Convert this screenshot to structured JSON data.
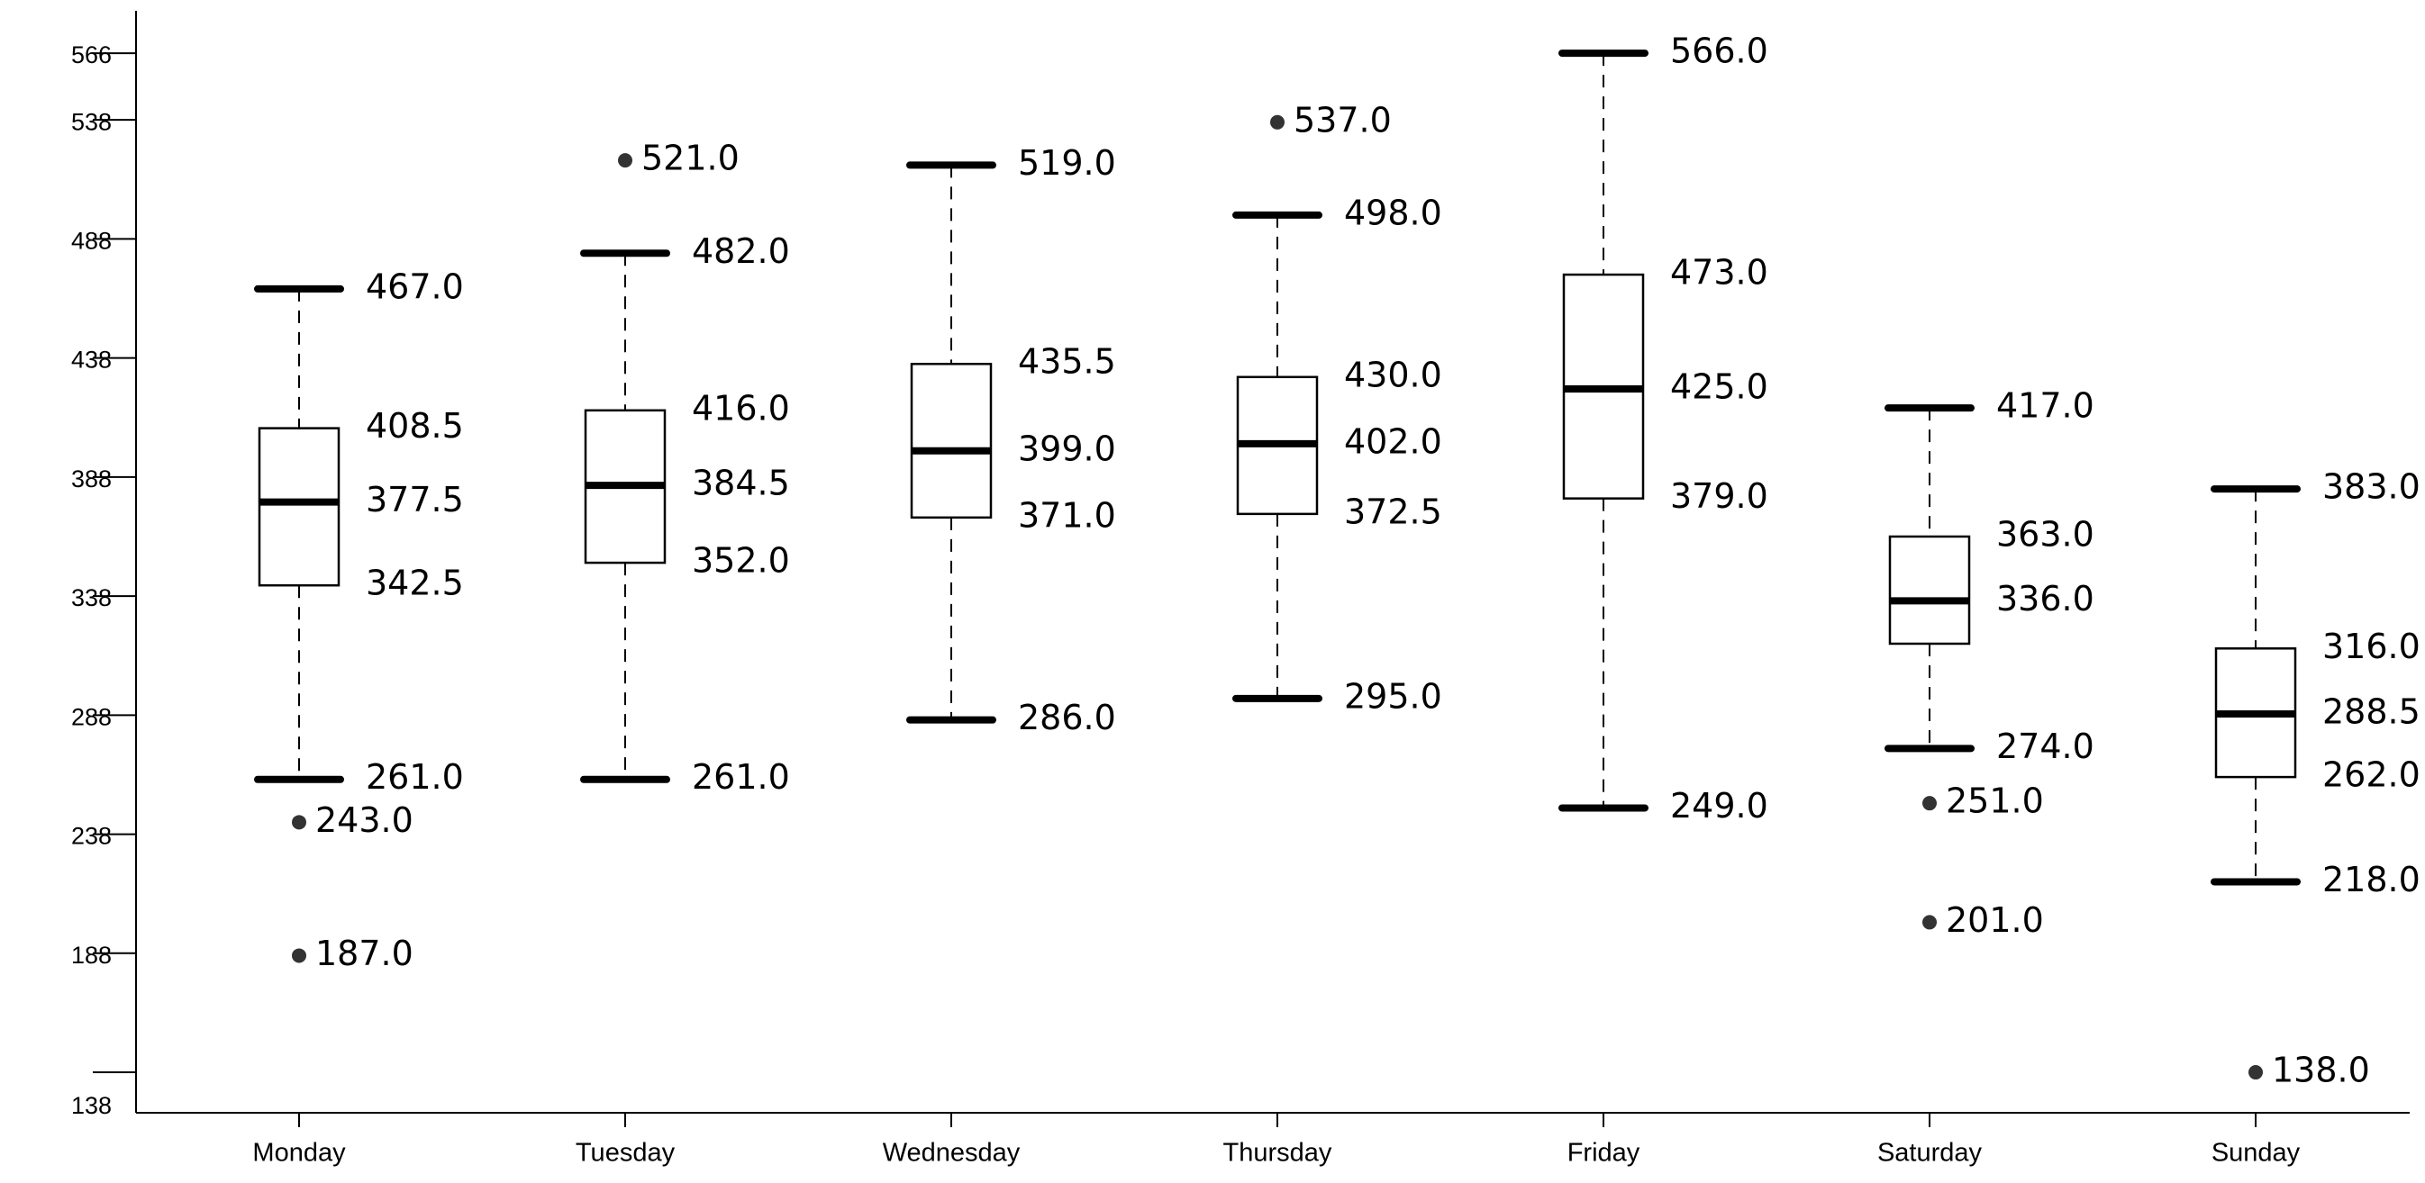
{
  "chart_data": {
    "type": "boxplot",
    "title": "",
    "xlabel": "",
    "ylabel": "",
    "categories": [
      "Monday",
      "Tuesday",
      "Wednesday",
      "Thursday",
      "Friday",
      "Saturday",
      "Sunday"
    ],
    "y_ticks": [
      138,
      188,
      238,
      288,
      338,
      388,
      438,
      488,
      538,
      566
    ],
    "ylim": [
      121,
      577
    ],
    "grid": false,
    "boxes": [
      {
        "category": "Monday",
        "whisker_low": 261.0,
        "q1": 342.5,
        "median": 377.5,
        "q3": 408.5,
        "whisker_high": 467.0,
        "outliers": [
          243.0,
          187.0
        ]
      },
      {
        "category": "Tuesday",
        "whisker_low": 261.0,
        "q1": 352.0,
        "median": 384.5,
        "q3": 416.0,
        "whisker_high": 482.0,
        "outliers": [
          521.0
        ]
      },
      {
        "category": "Wednesday",
        "whisker_low": 286.0,
        "q1": 371.0,
        "median": 399.0,
        "q3": 435.5,
        "whisker_high": 519.0,
        "outliers": []
      },
      {
        "category": "Thursday",
        "whisker_low": 295.0,
        "q1": 372.5,
        "median": 402.0,
        "q3": 430.0,
        "whisker_high": 498.0,
        "outliers": [
          537.0
        ]
      },
      {
        "category": "Friday",
        "whisker_low": 249.0,
        "q1": 379.0,
        "median": 425.0,
        "q3": 473.0,
        "whisker_high": 566.0,
        "outliers": []
      },
      {
        "category": "Saturday",
        "whisker_low": 274.0,
        "q1": 318.0,
        "median": 336.0,
        "q3": 363.0,
        "whisker_high": 417.0,
        "outliers": [
          251.0,
          201.0
        ]
      },
      {
        "category": "Sunday",
        "whisker_low": 218.0,
        "q1": 262.0,
        "median": 288.5,
        "q3": 316.0,
        "whisker_high": 383.0,
        "outliers": [
          138.0
        ]
      }
    ],
    "value_labels": [
      {
        "category": "Monday",
        "labels": [
          "467.0",
          "408.5",
          "377.5",
          "342.5",
          "261.0",
          "243.0",
          "187.0"
        ]
      },
      {
        "category": "Tuesday",
        "labels": [
          "521.0",
          "482.0",
          "416.0",
          "384.5",
          "352.0",
          "261.0"
        ]
      },
      {
        "category": "Wednesday",
        "labels": [
          "519.0",
          "435.5",
          "399.0",
          "371.0",
          "286.0"
        ]
      },
      {
        "category": "Thursday",
        "labels": [
          "537.0",
          "498.0",
          "430.0",
          "402.0",
          "372.5",
          "295.0"
        ]
      },
      {
        "category": "Friday",
        "labels": [
          "566.0",
          "473.0",
          "425.0",
          "379.0",
          "249.0"
        ]
      },
      {
        "category": "Saturday",
        "labels": [
          "417.0",
          "363.0",
          "336.0",
          "274.0",
          "251.0",
          "201.0"
        ]
      },
      {
        "category": "Sunday",
        "labels": [
          "383.0",
          "316.0",
          "288.5",
          "262.0",
          "218.0",
          "138.0"
        ]
      }
    ]
  }
}
